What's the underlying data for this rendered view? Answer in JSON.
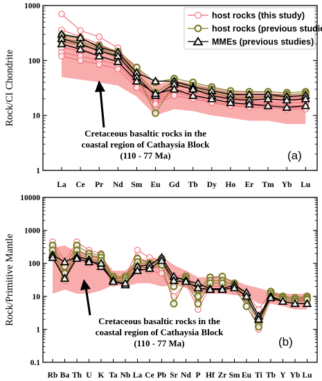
{
  "legend": {
    "items": [
      {
        "key": "host_this",
        "label": "host rocks (this study)",
        "color": "#f0707a",
        "marker": "circle-open"
      },
      {
        "key": "host_prev",
        "label": "host rocks (previous studies)",
        "color": "#8a8a3a",
        "marker": "circle-thick"
      },
      {
        "key": "mme",
        "label": "MMEs (previous studies)",
        "color": "#000000",
        "marker": "triangle-open"
      }
    ]
  },
  "colors": {
    "band": "#f7a3a3",
    "host_this": "#ef6b74",
    "host_prev": "#7f7f2e",
    "mme": "#000000"
  },
  "chart_data": [
    {
      "type": "line",
      "panel_label": "(a)",
      "ylabel": "Rock/CI Chondrite",
      "yscale": "log",
      "ylim": [
        1,
        1000
      ],
      "yticks": [
        "1",
        "10",
        "100",
        "1000"
      ],
      "categories": [
        "La",
        "Ce",
        "Pr",
        "Nd",
        "Sm",
        "Eu",
        "Gd",
        "Tb",
        "Dy",
        "Ho",
        "Er",
        "Tm",
        "Yb",
        "Lu"
      ],
      "annotation": [
        "Cretaceous basaltic rocks in the",
        "coastal region of Cathaysia Block",
        "(110 - 77 Ma)"
      ],
      "band": {
        "upper": [
          300,
          240,
          190,
          150,
          80,
          36,
          44,
          38,
          32,
          28,
          27,
          26,
          25,
          25
        ],
        "lower": [
          50,
          45,
          40,
          35,
          22,
          10,
          13,
          12,
          10,
          9,
          8,
          8,
          7,
          7
        ]
      },
      "series": [
        {
          "group": "host_this",
          "values": [
            700,
            350,
            270,
            170,
            60,
            22,
            40,
            33,
            28,
            24,
            22,
            22,
            21,
            21
          ]
        },
        {
          "group": "host_this",
          "values": [
            360,
            270,
            200,
            140,
            52,
            21,
            35,
            30,
            25,
            21,
            20,
            20,
            19,
            19
          ]
        },
        {
          "group": "host_this",
          "values": [
            230,
            190,
            150,
            110,
            45,
            20,
            30,
            26,
            22,
            19,
            18,
            17,
            17,
            17
          ]
        },
        {
          "group": "host_this",
          "values": [
            170,
            150,
            120,
            95,
            40,
            18,
            28,
            24,
            20,
            17,
            16,
            16,
            15,
            15
          ]
        },
        {
          "group": "host_this",
          "values": [
            140,
            120,
            100,
            85,
            36,
            17,
            26,
            22,
            18,
            16,
            15,
            15,
            14,
            14
          ]
        },
        {
          "group": "host_this",
          "values": [
            120,
            100,
            85,
            70,
            32,
            16,
            23,
            20,
            17,
            15,
            14,
            14,
            13,
            13
          ]
        },
        {
          "group": "host_prev",
          "values": [
            290,
            250,
            185,
            145,
            75,
            40,
            47,
            40,
            33,
            28,
            27,
            27,
            26,
            27
          ]
        },
        {
          "group": "host_prev",
          "values": [
            250,
            220,
            165,
            125,
            60,
            26,
            42,
            35,
            30,
            25,
            24,
            24,
            24,
            25
          ]
        },
        {
          "group": "host_prev",
          "values": [
            220,
            190,
            150,
            115,
            55,
            11,
            38,
            30,
            26,
            22,
            21,
            22,
            22,
            23
          ]
        },
        {
          "group": "mme",
          "values": [
            300,
            260,
            175,
            140,
            60,
            42,
            42,
            33,
            28,
            24,
            24,
            24,
            22,
            23
          ]
        },
        {
          "group": "mme",
          "values": [
            250,
            200,
            150,
            120,
            50,
            23,
            37,
            30,
            23,
            20,
            19,
            20,
            19,
            20
          ]
        },
        {
          "group": "mme",
          "values": [
            200,
            160,
            120,
            95,
            42,
            25,
            30,
            23,
            20,
            17,
            16,
            15,
            14,
            15
          ]
        }
      ]
    },
    {
      "type": "line",
      "panel_label": "(b)",
      "ylabel": "Rock/Primitive Mantle",
      "yscale": "log",
      "ylim": [
        0.1,
        10000
      ],
      "yticks": [
        "0.1",
        "1",
        "10",
        "100",
        "1000",
        "10000"
      ],
      "categories": [
        "Rb",
        "Ba",
        "Th",
        "U",
        "K",
        "Ta",
        "Nb",
        "La",
        "Ce",
        "Pb",
        "Sr",
        "Nd",
        "P",
        "Hf",
        "Zr",
        "Sm",
        "Eu",
        "Ti",
        "Tb",
        "Y",
        "Yb",
        "Lu"
      ],
      "annotation": [
        "Cretaceous basaltic rocks in the",
        "coastal region of Cathaysia Block",
        "(110 - 77 Ma)"
      ],
      "band": {
        "upper": [
          300,
          350,
          220,
          190,
          160,
          60,
          60,
          120,
          130,
          160,
          90,
          60,
          38,
          38,
          38,
          30,
          22,
          18,
          14,
          12,
          12,
          12
        ],
        "lower": [
          12,
          16,
          12,
          12,
          15,
          22,
          20,
          25,
          25,
          20,
          22,
          18,
          12,
          12,
          12,
          11,
          10,
          6,
          6,
          5,
          4,
          4
        ]
      },
      "series": [
        {
          "group": "host_this",
          "values": [
            450,
            120,
            450,
            250,
            200,
            35,
            40,
            250,
            150,
            120,
            40,
            45,
            10,
            35,
            40,
            25,
            12,
            4,
            13,
            10,
            9,
            9
          ]
        },
        {
          "group": "host_this",
          "values": [
            300,
            60,
            260,
            180,
            150,
            32,
            35,
            150,
            110,
            90,
            35,
            38,
            8,
            30,
            30,
            22,
            10,
            2,
            12,
            9,
            8,
            8
          ]
        },
        {
          "group": "host_this",
          "values": [
            220,
            40,
            200,
            140,
            120,
            28,
            30,
            100,
            80,
            70,
            25,
            32,
            6,
            25,
            25,
            18,
            9,
            1.5,
            10,
            8,
            7,
            7
          ]
        },
        {
          "group": "host_this",
          "values": [
            160,
            30,
            160,
            100,
            90,
            25,
            25,
            70,
            60,
            50,
            10,
            25,
            4,
            20,
            20,
            15,
            8,
            1,
            8,
            7,
            6,
            6
          ]
        },
        {
          "group": "host_prev",
          "values": [
            350,
            80,
            350,
            200,
            180,
            40,
            40,
            140,
            100,
            140,
            30,
            40,
            16,
            38,
            40,
            25,
            10,
            2,
            14,
            10,
            9,
            10
          ]
        },
        {
          "group": "host_prev",
          "values": [
            250,
            50,
            250,
            160,
            150,
            35,
            35,
            110,
            90,
            120,
            20,
            35,
            10,
            30,
            30,
            22,
            9,
            1.5,
            12,
            9,
            8,
            9
          ]
        },
        {
          "group": "host_prev",
          "values": [
            180,
            35,
            180,
            120,
            120,
            30,
            30,
            80,
            70,
            90,
            6,
            30,
            6,
            25,
            25,
            18,
            5,
            1.2,
            10,
            8,
            7,
            8
          ]
        },
        {
          "group": "mme",
          "values": [
            180,
            110,
            160,
            130,
            80,
            30,
            22,
            80,
            90,
            150,
            40,
            30,
            25,
            17,
            17,
            22,
            13,
            2.5,
            10,
            7,
            6,
            6
          ]
        },
        {
          "group": "mme",
          "values": [
            150,
            35,
            140,
            110,
            100,
            28,
            25,
            60,
            70,
            120,
            30,
            28,
            18,
            16,
            16,
            18,
            10,
            2,
            9,
            7,
            6,
            6
          ]
        }
      ]
    }
  ]
}
